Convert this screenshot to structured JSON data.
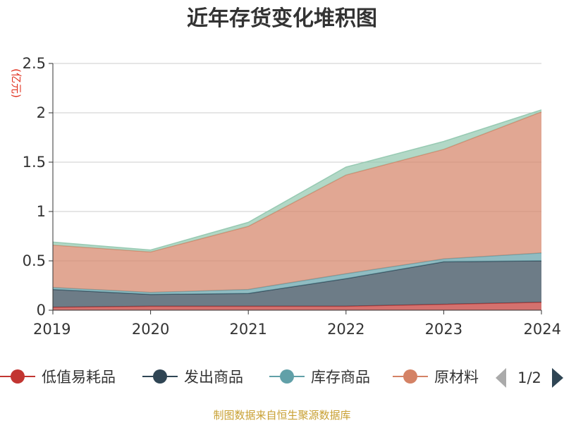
{
  "title": "近年存货变化堆积图",
  "source": "制图数据来自恒生聚源数据库",
  "legend_page": "1/2",
  "colors": {
    "低值易耗品": "#c23531",
    "发出商品": "#2f4554",
    "库存商品": "#61a0a8",
    "原材料": "#d48265",
    "top_band": "#91c7ae"
  },
  "chart_data": {
    "type": "area",
    "stacked": true,
    "x": [
      "2019",
      "2020",
      "2021",
      "2022",
      "2023",
      "2024"
    ],
    "ylabel": "(亿元)",
    "ylim": [
      0,
      2.5
    ],
    "yticks": [
      "0",
      "0.5",
      "1",
      "1.5",
      "2",
      "2.5"
    ],
    "grid": true,
    "legend_position": "bottom",
    "series": [
      {
        "name": "低值易耗品",
        "values": [
          0.03,
          0.04,
          0.04,
          0.04,
          0.06,
          0.08
        ]
      },
      {
        "name": "发出商品",
        "values": [
          0.18,
          0.12,
          0.13,
          0.28,
          0.43,
          0.42
        ]
      },
      {
        "name": "库存商品",
        "values": [
          0.02,
          0.02,
          0.04,
          0.05,
          0.03,
          0.08
        ]
      },
      {
        "name": "原材料",
        "values": [
          0.43,
          0.41,
          0.64,
          1.0,
          1.11,
          1.43
        ]
      },
      {
        "name": "",
        "values": [
          0.03,
          0.02,
          0.04,
          0.08,
          0.08,
          0.02
        ]
      }
    ]
  },
  "legend": [
    {
      "label": "低值易耗品",
      "color": "#c23531"
    },
    {
      "label": "发出商品",
      "color": "#2f4554"
    },
    {
      "label": "库存商品",
      "color": "#61a0a8"
    },
    {
      "label": "原材料",
      "display": "原材料",
      "color": "#d48265"
    }
  ]
}
